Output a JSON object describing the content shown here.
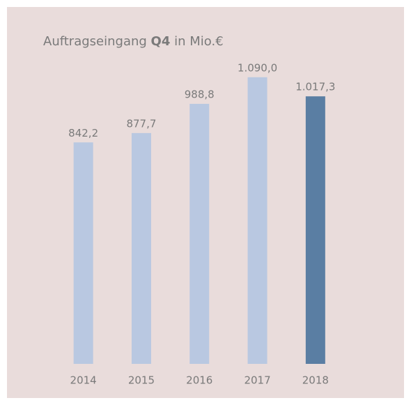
{
  "chart_data": {
    "type": "bar",
    "title": [
      "Auftragseingang",
      "Q4",
      "in Mio.€"
    ],
    "categories": [
      "2014",
      "2015",
      "2016",
      "2017",
      "2018"
    ],
    "values": [
      842.2,
      877.7,
      988.8,
      1090.0,
      1017.3
    ],
    "value_labels": [
      "842,2",
      "877,7",
      "988,8",
      "1.090,0",
      "1.017,3"
    ],
    "colors": [
      "#b9c8e1",
      "#b9c8e1",
      "#b9c8e1",
      "#b9c8e1",
      "#5a7ea3"
    ],
    "ylim": [
      0,
      1100
    ]
  }
}
